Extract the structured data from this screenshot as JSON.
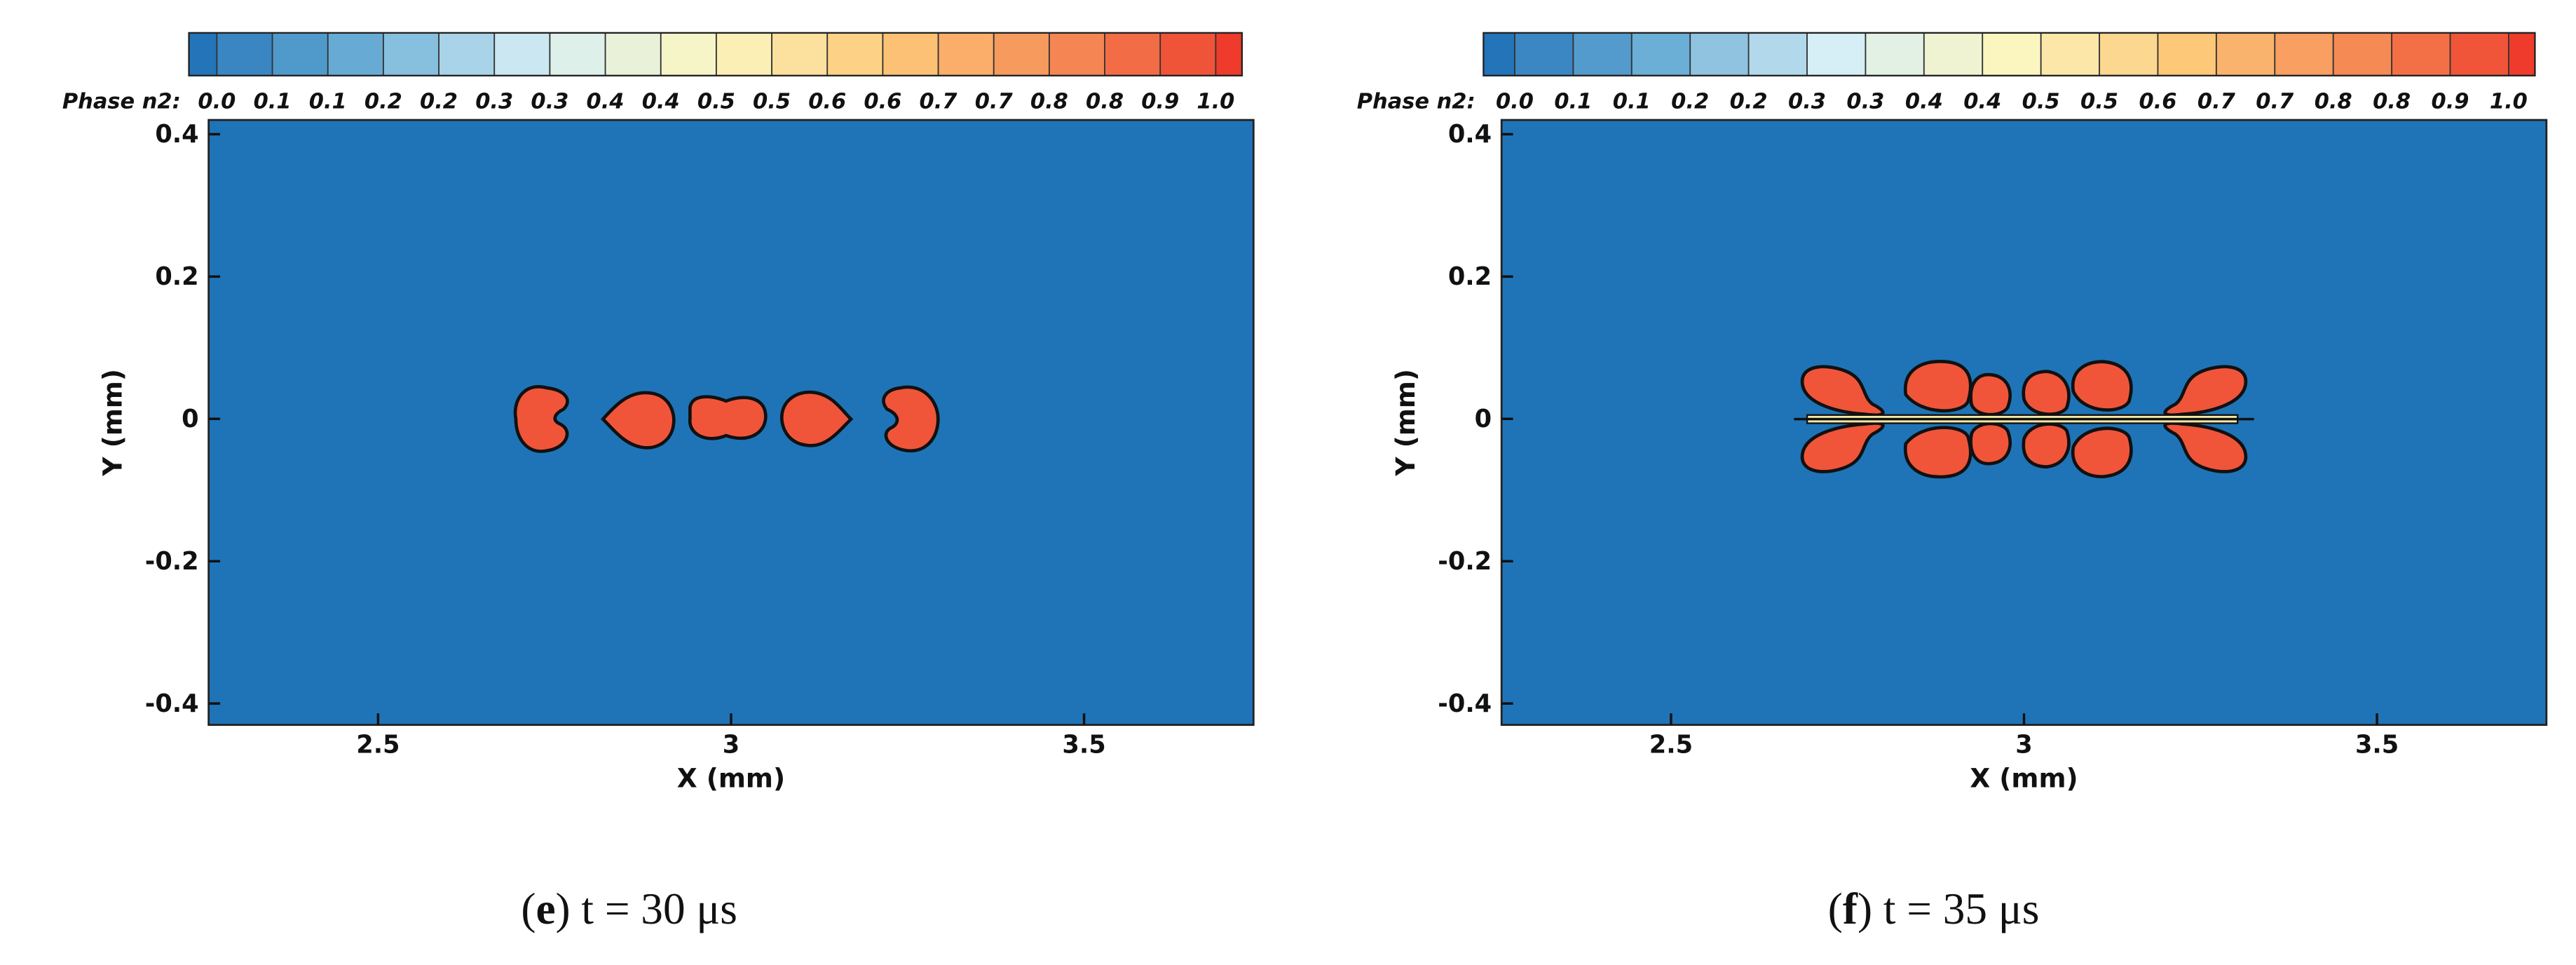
{
  "chart_data": [
    {
      "type": "contour",
      "colorbar_title": "Phase n2:",
      "colorbar_labels": [
        "0.0",
        "0.1",
        "0.1",
        "0.2",
        "0.2",
        "0.3",
        "0.3",
        "0.4",
        "0.4",
        "0.5",
        "0.5",
        "0.6",
        "0.6",
        "0.7",
        "0.7",
        "0.8",
        "0.8",
        "0.9",
        "1.0"
      ],
      "colormap": [
        "#2374b9",
        "#6baed6",
        "#d6eef5",
        "#fbf6c0",
        "#fdc878",
        "#f58a55",
        "#ee3b2b"
      ],
      "background": "#1f74b8",
      "droplet_color": "#f0553a",
      "x_label": "X (mm)",
      "y_label": "Y (mm)",
      "xlim": [
        2.26,
        3.74
      ],
      "ylim": [
        -0.43,
        0.42
      ],
      "xticks": [
        2.5,
        3,
        3.5
      ],
      "yticks": [
        -0.4,
        -0.2,
        0,
        0.2,
        0.4
      ],
      "caption": {
        "prefix": "(",
        "letter": "e",
        "suffix": ") t = 30 μs"
      }
    },
    {
      "type": "contour",
      "colorbar_title": "Phase n2:",
      "colorbar_labels": [
        "0.0",
        "0.1",
        "0.1",
        "0.2",
        "0.2",
        "0.3",
        "0.3",
        "0.4",
        "0.4",
        "0.5",
        "0.5",
        "0.6",
        "0.7",
        "0.7",
        "0.8",
        "0.8",
        "0.9",
        "1.0"
      ],
      "colormap": [
        "#2374b9",
        "#6baed6",
        "#d6eef5",
        "#fbf6c0",
        "#fdc878",
        "#f58a55",
        "#ee3b2b"
      ],
      "background": "#1f74b8",
      "droplet_color": "#f0553a",
      "x_label": "X (mm)",
      "y_label": "Y (mm)",
      "xlim": [
        2.26,
        3.74
      ],
      "ylim": [
        -0.43,
        0.42
      ],
      "xticks": [
        2.5,
        3,
        3.5
      ],
      "yticks": [
        -0.4,
        -0.2,
        0,
        0.2,
        0.4
      ],
      "caption": {
        "prefix": "(",
        "letter": "f",
        "suffix": ") t = 35 μs"
      }
    }
  ]
}
